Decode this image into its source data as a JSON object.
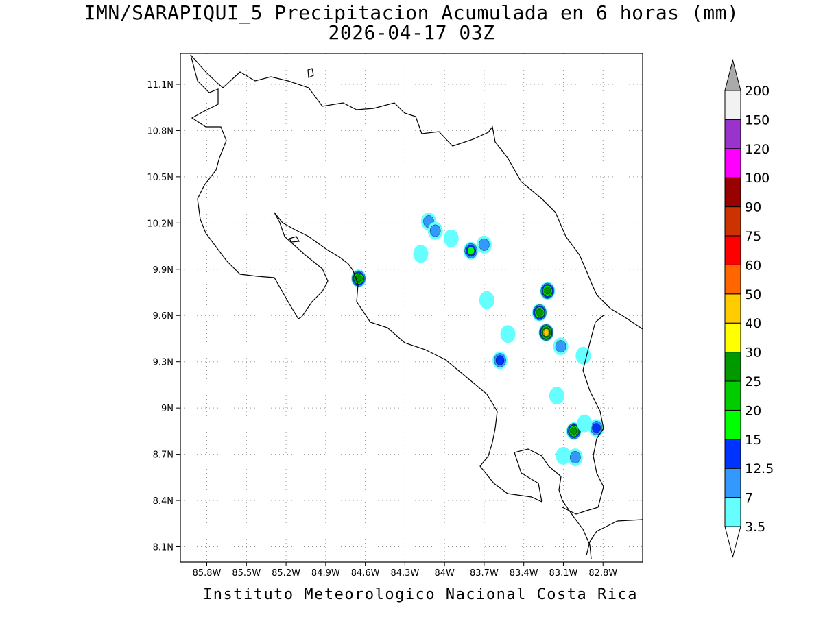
{
  "title": "IMN/SARAPIQUI_5 Precipitacion Acumulada en 6 horas (mm)",
  "subtitle": "2026-04-17 03Z",
  "footer": "Instituto Meteorologico Nacional Costa Rica",
  "map": {
    "lon_range": [
      -86.0,
      -82.5
    ],
    "lat_range": [
      8.0,
      11.3
    ],
    "lat_labels": [
      {
        "lat": 11.1,
        "label": "11.1N"
      },
      {
        "lat": 10.8,
        "label": "10.8N"
      },
      {
        "lat": 10.5,
        "label": "10.5N"
      },
      {
        "lat": 10.2,
        "label": "10.2N"
      },
      {
        "lat": 9.9,
        "label": "9.9N"
      },
      {
        "lat": 9.6,
        "label": "9.6N"
      },
      {
        "lat": 9.3,
        "label": "9.3N"
      },
      {
        "lat": 9.0,
        "label": "9N"
      },
      {
        "lat": 8.7,
        "label": "8.7N"
      },
      {
        "lat": 8.4,
        "label": "8.4N"
      },
      {
        "lat": 8.1,
        "label": "8.1N"
      }
    ],
    "lon_labels": [
      {
        "lon": -85.8,
        "label": "85.8W"
      },
      {
        "lon": -85.5,
        "label": "85.5W"
      },
      {
        "lon": -85.2,
        "label": "85.2W"
      },
      {
        "lon": -84.9,
        "label": "84.9W"
      },
      {
        "lon": -84.6,
        "label": "84.6W"
      },
      {
        "lon": -84.3,
        "label": "84.3W"
      },
      {
        "lon": -84.0,
        "label": "84W"
      },
      {
        "lon": -83.7,
        "label": "83.7W"
      },
      {
        "lon": -83.4,
        "label": "83.4W"
      },
      {
        "lon": -83.1,
        "label": "83.1W"
      },
      {
        "lon": -82.8,
        "label": "82.8W"
      }
    ],
    "precip_cells": [
      {
        "lon": -84.65,
        "lat": 9.84,
        "max": 25
      },
      {
        "lon": -84.12,
        "lat": 10.21,
        "max": 7
      },
      {
        "lon": -84.07,
        "lat": 10.15,
        "max": 7
      },
      {
        "lon": -83.95,
        "lat": 10.1,
        "max": 3.5
      },
      {
        "lon": -83.8,
        "lat": 10.02,
        "max": 15
      },
      {
        "lon": -83.7,
        "lat": 10.06,
        "max": 7
      },
      {
        "lon": -84.18,
        "lat": 10.0,
        "max": 3.5
      },
      {
        "lon": -83.68,
        "lat": 9.7,
        "max": 3.5
      },
      {
        "lon": -83.22,
        "lat": 9.76,
        "max": 25
      },
      {
        "lon": -83.28,
        "lat": 9.62,
        "max": 25
      },
      {
        "lon": -83.23,
        "lat": 9.49,
        "max": 40
      },
      {
        "lon": -83.12,
        "lat": 9.4,
        "max": 7
      },
      {
        "lon": -83.52,
        "lat": 9.48,
        "max": 3.5
      },
      {
        "lon": -83.58,
        "lat": 9.31,
        "max": 12.5
      },
      {
        "lon": -82.95,
        "lat": 9.34,
        "max": 3.5
      },
      {
        "lon": -83.15,
        "lat": 9.08,
        "max": 3.5
      },
      {
        "lon": -83.02,
        "lat": 8.85,
        "max": 25
      },
      {
        "lon": -82.85,
        "lat": 8.87,
        "max": 12.5
      },
      {
        "lon": -82.94,
        "lat": 8.9,
        "max": 3.5
      },
      {
        "lon": -83.1,
        "lat": 8.69,
        "max": 3.5
      },
      {
        "lon": -83.01,
        "lat": 8.68,
        "max": 7
      }
    ]
  },
  "colorbar": {
    "levels": [
      "3.5",
      "7",
      "12.5",
      "15",
      "20",
      "25",
      "30",
      "40",
      "50",
      "60",
      "75",
      "90",
      "100",
      "120",
      "150",
      "200"
    ],
    "colors": [
      "#66ffff",
      "#3399ff",
      "#0033ff",
      "#00ff00",
      "#00cc00",
      "#009900",
      "#ffff00",
      "#ffcc00",
      "#ff6600",
      "#ff0000",
      "#cc3300",
      "#990000",
      "#ff00ff",
      "#9933cc",
      "#f2f2f2",
      "#aaaaaa"
    ]
  }
}
